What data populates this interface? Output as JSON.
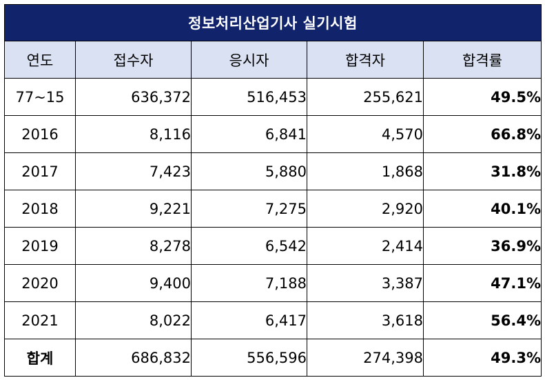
{
  "title": "정보처리산업기사 실기시험",
  "columns": [
    "연도",
    "접수자",
    "응시자",
    "합격자",
    "합격률"
  ],
  "rows": [
    {
      "year": "77~15",
      "applicants": "636,372",
      "examinees": "516,453",
      "passers": "255,621",
      "rate": "49.5%"
    },
    {
      "year": "2016",
      "applicants": "8,116",
      "examinees": "6,841",
      "passers": "4,570",
      "rate": "66.8%"
    },
    {
      "year": "2017",
      "applicants": "7,423",
      "examinees": "5,880",
      "passers": "1,868",
      "rate": "31.8%"
    },
    {
      "year": "2018",
      "applicants": "9,221",
      "examinees": "7,275",
      "passers": "2,920",
      "rate": "40.1%"
    },
    {
      "year": "2019",
      "applicants": "8,278",
      "examinees": "6,542",
      "passers": "2,414",
      "rate": "36.9%"
    },
    {
      "year": "2020",
      "applicants": "9,400",
      "examinees": "7,188",
      "passers": "3,387",
      "rate": "47.1%"
    },
    {
      "year": "2021",
      "applicants": "8,022",
      "examinees": "6,417",
      "passers": "3,618",
      "rate": "56.4%"
    }
  ],
  "total": {
    "year": "합계",
    "applicants": "686,832",
    "examinees": "556,596",
    "passers": "274,398",
    "rate": "49.3%"
  },
  "colors": {
    "title_bg": "#10236b",
    "header_bg": "#d9e1f2",
    "border": "#000000"
  }
}
